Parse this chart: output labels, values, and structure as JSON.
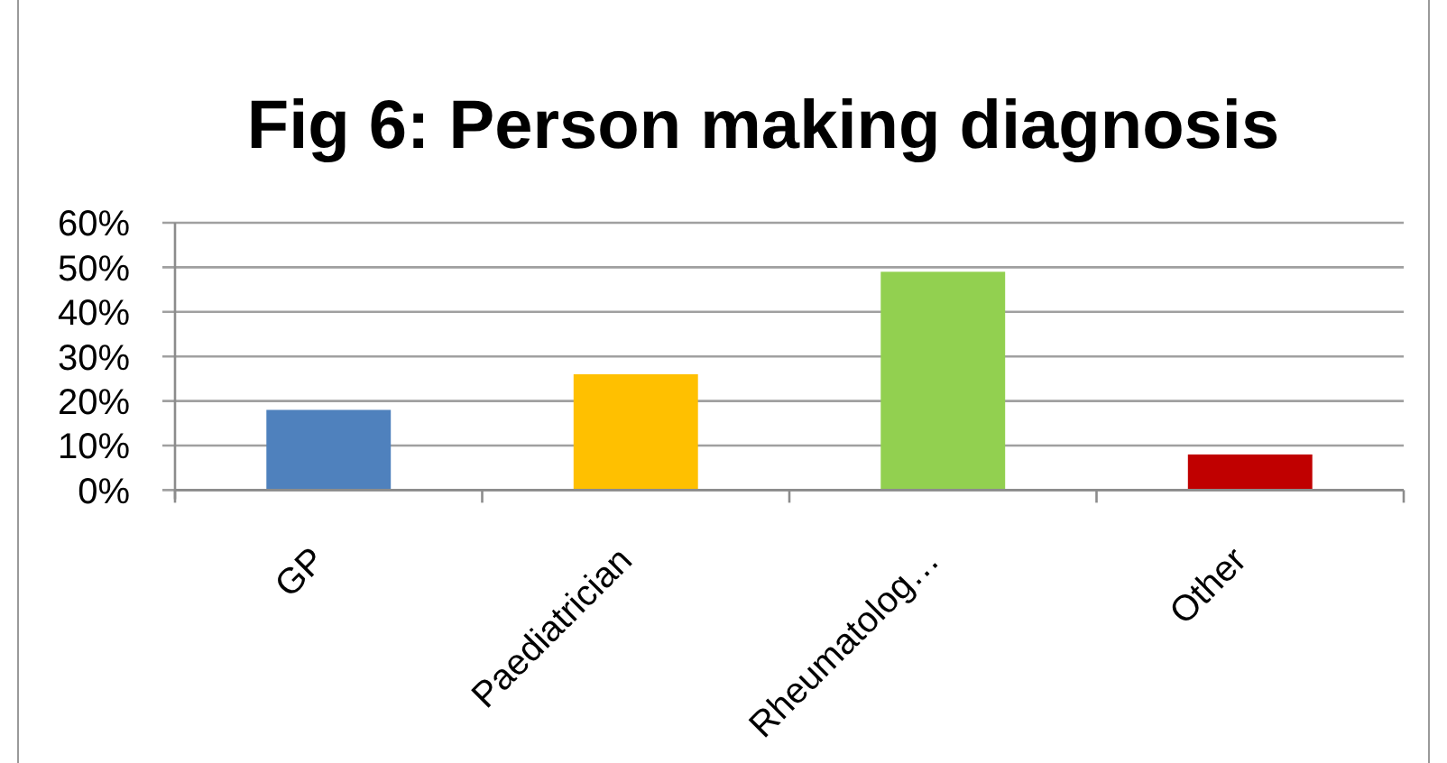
{
  "chart_data": {
    "type": "bar",
    "title": "Fig 6: Person making diagnosis",
    "categories": [
      "GP",
      "Paediatrician",
      "Rheumatolog…",
      "Other"
    ],
    "values": [
      18,
      26,
      49,
      8
    ],
    "colors": [
      "#4f81bd",
      "#ffc000",
      "#92d050",
      "#c00000"
    ],
    "ylim": [
      0,
      60
    ],
    "yticks": [
      {
        "value": 0,
        "label": "0%"
      },
      {
        "value": 10,
        "label": "10%"
      },
      {
        "value": 20,
        "label": "20%"
      },
      {
        "value": 30,
        "label": "30%"
      },
      {
        "value": 40,
        "label": "40%"
      },
      {
        "value": 50,
        "label": "50%"
      },
      {
        "value": 60,
        "label": "60%"
      }
    ],
    "grid": "y"
  }
}
